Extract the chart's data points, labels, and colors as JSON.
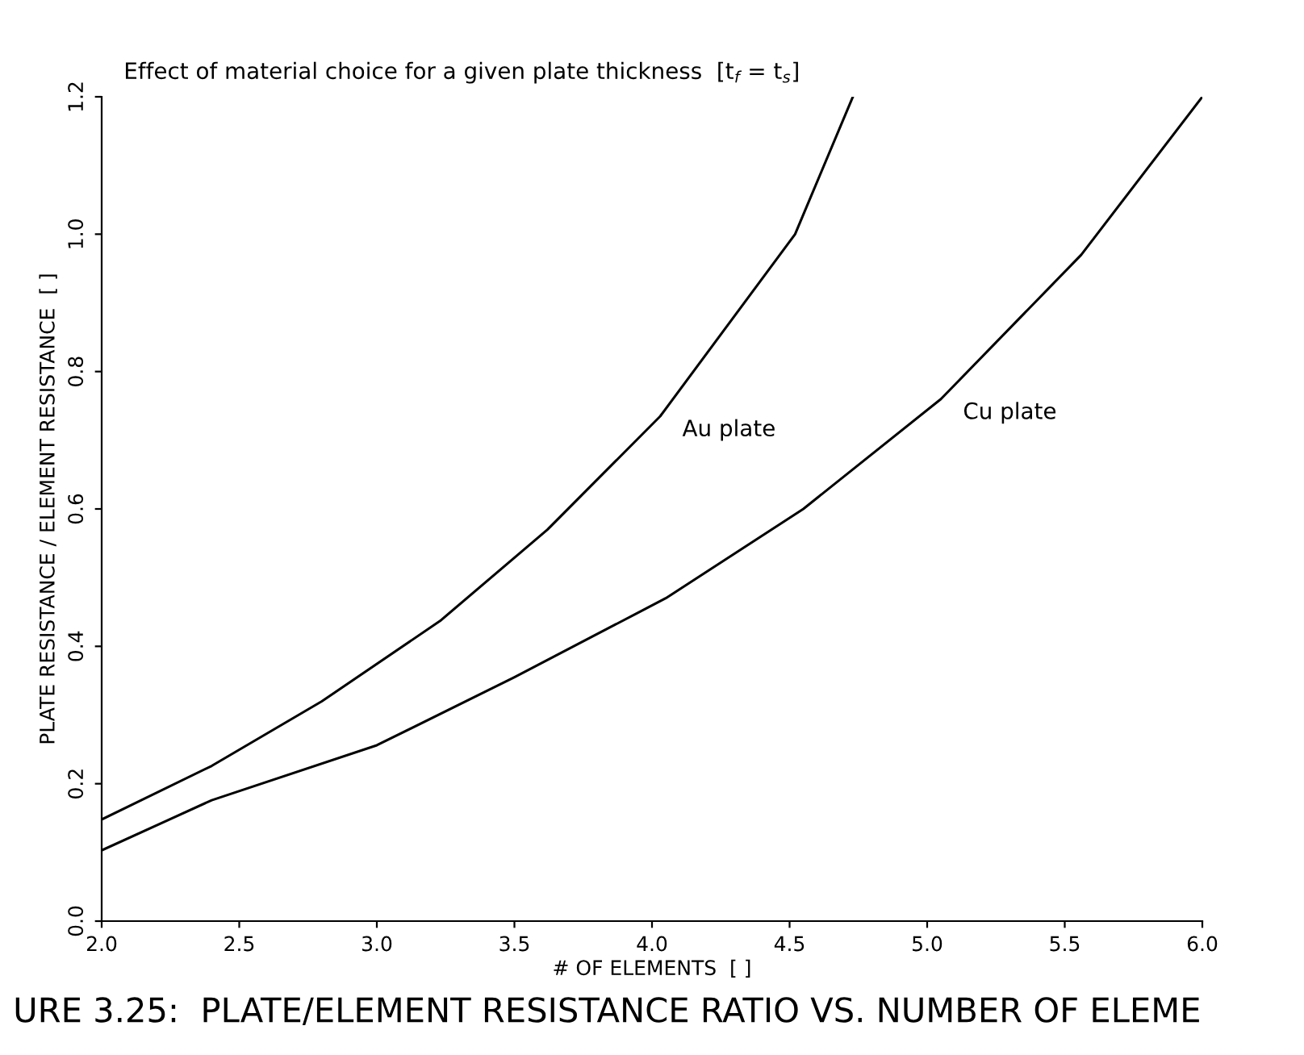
{
  "chart_data": {
    "type": "line",
    "title": "Effect of material choice for a given plate thickness  [t$_{f}$ = t$_{s}$]",
    "xlabel": "# OF ELEMENTS  [ ]",
    "ylabel": "PLATE RESISTANCE / ELEMENT RESISTANCE  [ ]",
    "series": [
      {
        "name": "Au plate",
        "color": "#000000",
        "x": [
          2.0,
          2.4,
          2.8,
          3.23,
          3.62,
          4.03,
          4.52,
          4.73
        ],
        "values": [
          0.148,
          0.226,
          0.32,
          0.437,
          0.57,
          0.735,
          1.0,
          1.2
        ]
      },
      {
        "name": "Cu plate",
        "color": "#000000",
        "x": [
          2.0,
          2.4,
          3.0,
          3.5,
          4.05,
          4.55,
          5.05,
          5.56,
          6.0
        ],
        "values": [
          0.103,
          0.176,
          0.256,
          0.355,
          0.47,
          0.6,
          0.76,
          0.97,
          1.2
        ]
      }
    ],
    "xlim": [
      2.0,
      6.0
    ],
    "ylim": [
      0.0,
      1.2
    ],
    "xticks": [
      {
        "value": 2,
        "label": "2.0"
      },
      {
        "value": 2.5,
        "label": "2.5"
      },
      {
        "value": 3,
        "label": "3.0"
      },
      {
        "value": 3.5,
        "label": "3.5"
      },
      {
        "value": 4,
        "label": "4.0"
      },
      {
        "value": 4.5,
        "label": "4.5"
      },
      {
        "value": 5,
        "label": "5.0"
      },
      {
        "value": 5.5,
        "label": "5.5"
      },
      {
        "value": 6,
        "label": "6.0"
      }
    ],
    "yticks": [
      {
        "value": 0,
        "label": "0.0"
      },
      {
        "value": 0.2,
        "label": "0.2"
      },
      {
        "value": 0.4,
        "label": "0.4"
      },
      {
        "value": 0.6,
        "label": "0.6"
      },
      {
        "value": 0.8,
        "label": "0.8"
      },
      {
        "value": 1,
        "label": "1.0"
      },
      {
        "value": 1.2,
        "label": "1.2"
      }
    ],
    "annotations": [
      "URE 3.25:  PLATE/ELEMENT RESISTANCE RATIO VS. NUMBER OF ELEME"
    ],
    "grid": false,
    "legend": false,
    "marker": "none",
    "line_style": "solid"
  }
}
